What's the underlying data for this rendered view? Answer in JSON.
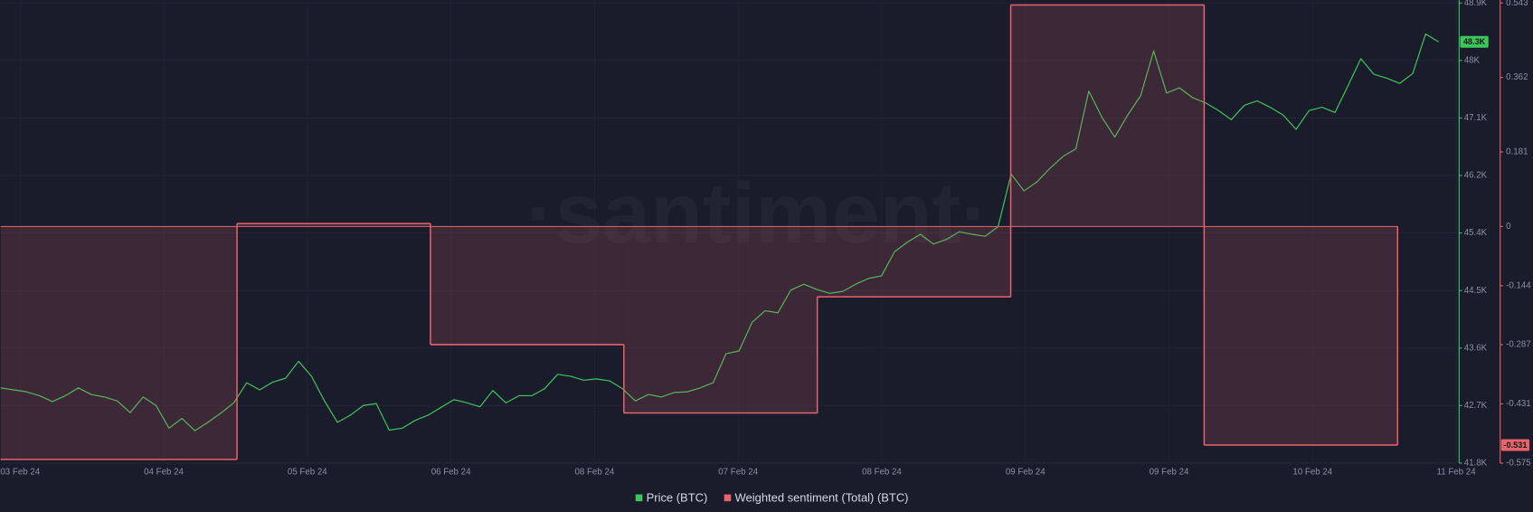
{
  "chart_data": {
    "type": "line",
    "watermark": "·santiment·",
    "x_labels": [
      "03 Feb 24",
      "04 Feb 24",
      "05 Feb 24",
      "06 Feb 24",
      "08 Feb 24",
      "07 Feb 24",
      "08 Feb 24",
      "09 Feb 24",
      "09 Feb 24",
      "10 Feb 24",
      "11 Feb 24"
    ],
    "ylim": [
      41800,
      48900
    ],
    "yticks": [
      {
        "value": 41800,
        "label": "41.8K"
      },
      {
        "value": 42687.5,
        "label": "42.7K"
      },
      {
        "value": 43575,
        "label": "43.6K"
      },
      {
        "value": 44462.5,
        "label": "44.5K"
      },
      {
        "value": 45350,
        "label": "45.4K"
      },
      {
        "value": 46237.5,
        "label": "46.2K"
      },
      {
        "value": 47125,
        "label": "47.1K"
      },
      {
        "value": 48012.5,
        "label": "48K"
      },
      {
        "value": 48900,
        "label": "48.9K"
      }
    ],
    "y2lim": [
      -0.575,
      0.543
    ],
    "y2ticks": [
      -0.575,
      -0.431,
      -0.287,
      -0.144,
      0,
      0.181,
      0.362,
      0.543
    ],
    "grid": true,
    "series": [
      {
        "name": "Price (BTC)",
        "color": "#3dc65a",
        "current_label": "48.3K",
        "values": [
          42960,
          42930,
          42900,
          42840,
          42750,
          42840,
          42960,
          42860,
          42820,
          42760,
          42580,
          42820,
          42690,
          42340,
          42490,
          42300,
          42430,
          42570,
          42730,
          43040,
          42930,
          43050,
          43110,
          43370,
          43140,
          42760,
          42430,
          42540,
          42690,
          42720,
          42310,
          42340,
          42460,
          42540,
          42660,
          42780,
          42730,
          42670,
          42920,
          42730,
          42840,
          42840,
          42950,
          43170,
          43140,
          43080,
          43100,
          43070,
          42950,
          42760,
          42860,
          42820,
          42890,
          42900,
          42960,
          43040,
          43490,
          43530,
          43970,
          44150,
          44120,
          44470,
          44560,
          44480,
          44420,
          44450,
          44560,
          44650,
          44690,
          45060,
          45210,
          45330,
          45180,
          45250,
          45370,
          45330,
          45300,
          45450,
          46260,
          46000,
          46140,
          46350,
          46530,
          46650,
          47540,
          47140,
          46830,
          47170,
          47470,
          48160,
          47510,
          47590,
          47440,
          47360,
          47240,
          47100,
          47320,
          47390,
          47290,
          47170,
          46950,
          47240,
          47290,
          47210,
          47620,
          48040,
          47800,
          47740,
          47660,
          47810,
          48420,
          48300
        ]
      },
      {
        "name": "Weighted sentiment (Total) (BTC)",
        "color": "#e8636b",
        "axis": "y2",
        "current_label": "-0.531",
        "values": [
          -0.566,
          0.007,
          -0.287,
          -0.453,
          -0.171,
          0.538,
          -0.531
        ]
      }
    ]
  }
}
